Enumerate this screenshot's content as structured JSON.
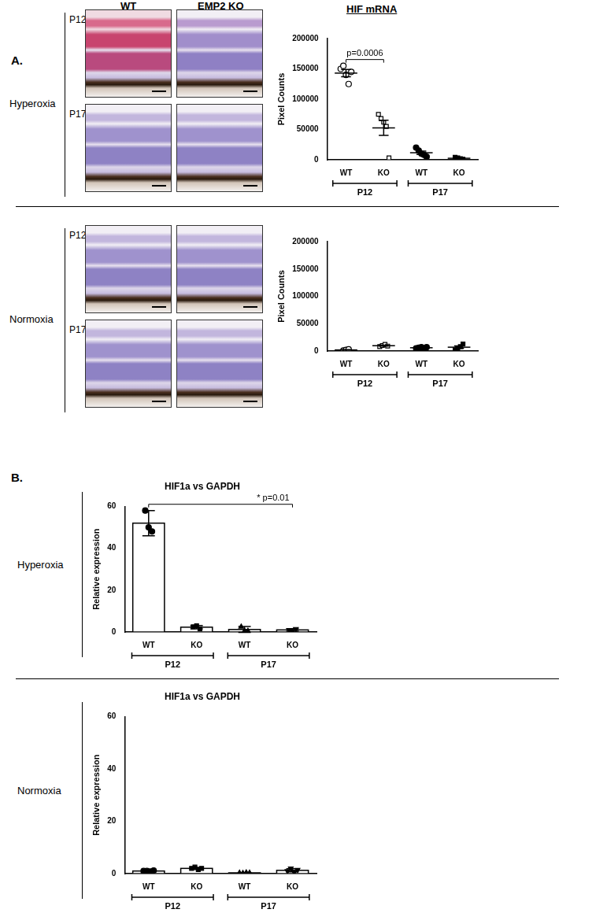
{
  "panel_labels": [
    "A.",
    "B."
  ],
  "image_columns": [
    "WT",
    "EMP2 KO"
  ],
  "chart_header": "HIF mRNA",
  "sections": [
    {
      "condition": "Hyperoxia",
      "timepoints": [
        "P12",
        "P17"
      ]
    },
    {
      "condition": "Normoxia",
      "timepoints": [
        "P12",
        "P17"
      ]
    }
  ],
  "chart_data": [
    {
      "type": "scatter",
      "y_label": "Pixel Counts",
      "categories": [
        "WT",
        "KO",
        "WT",
        "KO"
      ],
      "groups": [
        "P12",
        "P12",
        "P17",
        "P17"
      ],
      "markers": [
        "circle_open",
        "square_open",
        "circle",
        "square"
      ],
      "color": "#000000",
      "points": [
        [
          150000,
          155000,
          140000,
          125000,
          145000
        ],
        [
          75000,
          68000,
          62000,
          55000,
          3000
        ],
        [
          20000,
          15000,
          10000,
          8000,
          5000
        ],
        [
          4000,
          3000,
          2000,
          1000
        ]
      ],
      "means": [
        143000,
        52600,
        11600,
        2500
      ],
      "errors": [
        6000,
        12500,
        2800,
        700
      ],
      "ylim": [
        0,
        200000
      ],
      "yticks": [
        0,
        50000,
        100000,
        150000,
        200000
      ],
      "grid": false,
      "annotations": [
        {
          "text": "p=0.0006",
          "categories": [
            0,
            1
          ]
        }
      ]
    },
    {
      "type": "scatter",
      "y_label": "Pixel Counts",
      "categories": [
        "WT",
        "KO",
        "WT",
        "KO"
      ],
      "groups": [
        "P12",
        "P12",
        "P17",
        "P17"
      ],
      "markers": [
        "circle_open",
        "square_open",
        "circle",
        "square"
      ],
      "color": "#000000",
      "points": [
        [
          1000,
          2000,
          3000
        ],
        [
          8000,
          10000,
          12000,
          9000
        ],
        [
          5000,
          6000,
          7000,
          5000,
          7000
        ],
        [
          2000,
          5000,
          8000,
          13000
        ]
      ],
      "means": [
        2000,
        9750,
        6000,
        7000
      ],
      "errors": [
        600,
        900,
        400,
        2400
      ],
      "ylim": [
        0,
        200000
      ],
      "yticks": [
        0,
        50000,
        100000,
        150000,
        200000
      ],
      "grid": false,
      "annotations": []
    },
    {
      "type": "bar",
      "condition": "Hyperoxia",
      "title": "HIF1a vs GAPDH",
      "y_label": "Relative expression",
      "categories": [
        "WT",
        "KO",
        "WT",
        "KO"
      ],
      "groups": [
        "P12",
        "P12",
        "P17",
        "P17"
      ],
      "markers": [
        "circle",
        "square",
        "triangle",
        "triangle_down"
      ],
      "color": "#000000",
      "points": [
        [
          58,
          50,
          48
        ],
        [
          2.5,
          3,
          1.5
        ],
        [
          2.5,
          0.5,
          0.5
        ],
        [
          1,
          0.5,
          1.5
        ]
      ],
      "means": [
        52,
        2.3,
        1.2,
        1
      ],
      "errors": [
        6,
        0.8,
        1.4,
        0.6
      ],
      "ylim": [
        0,
        60
      ],
      "yticks": [
        0,
        20,
        40,
        60
      ],
      "grid": false,
      "annotations": [
        {
          "text": "* p=0.01",
          "categories": [
            0,
            3
          ]
        }
      ]
    },
    {
      "type": "bar",
      "condition": "Normoxia",
      "title": "HIF1a vs GAPDH",
      "y_label": "Relative expression",
      "categories": [
        "WT",
        "KO",
        "WT",
        "KO"
      ],
      "groups": [
        "P12",
        "P12",
        "P17",
        "P17"
      ],
      "markers": [
        "circle",
        "square",
        "triangle",
        "triangle_down"
      ],
      "color": "#000000",
      "points": [
        [
          1,
          1,
          0.8,
          1.2
        ],
        [
          2,
          2.5,
          1.5,
          2
        ],
        [
          0.3,
          0.2,
          0.4,
          0.3
        ],
        [
          1,
          2,
          0.5,
          1.5
        ]
      ],
      "means": [
        1,
        2,
        0.3,
        1.25
      ],
      "errors": [
        0.2,
        0.4,
        0.1,
        0.6
      ],
      "ylim": [
        0,
        60
      ],
      "yticks": [
        0,
        20,
        40,
        60
      ],
      "grid": false,
      "annotations": []
    }
  ]
}
